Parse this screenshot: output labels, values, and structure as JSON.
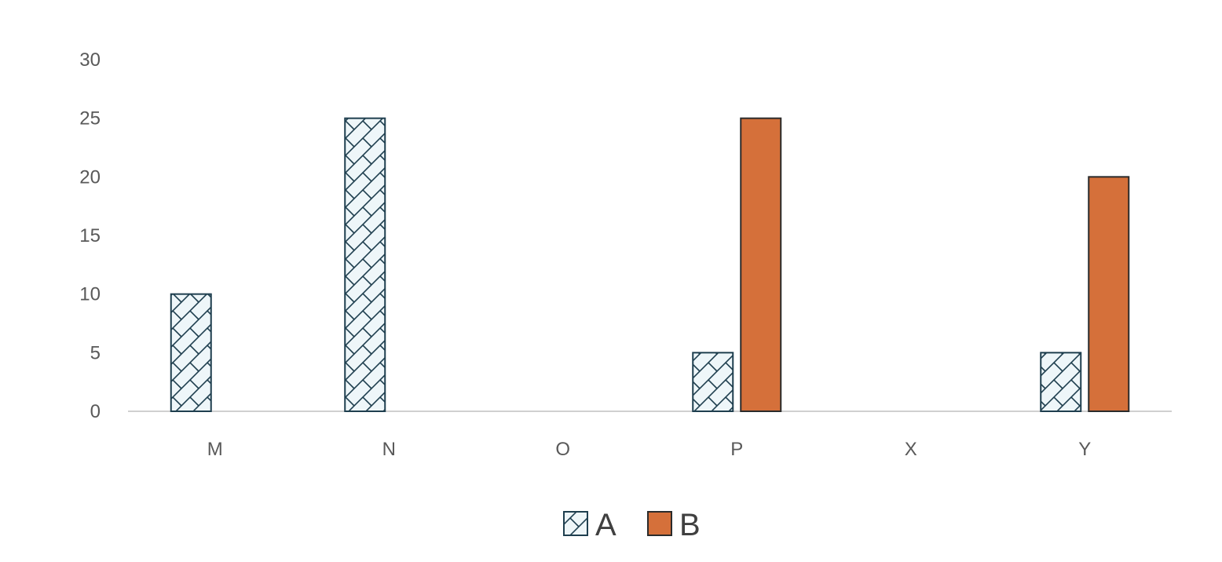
{
  "chart_data": {
    "type": "bar",
    "categories": [
      "M",
      "N",
      "O",
      "P",
      "X",
      "Y"
    ],
    "series": [
      {
        "name": "A",
        "values": [
          10,
          25,
          0,
          5,
          0,
          5
        ],
        "fill": "hatch",
        "color": "#1f3f4f",
        "background": "#eef6f9"
      },
      {
        "name": "B",
        "values": [
          0,
          0,
          0,
          25,
          0,
          20
        ],
        "fill": "solid",
        "color": "#d5703a",
        "stroke": "#2b2b2b"
      }
    ],
    "ylim": [
      0,
      30
    ],
    "yticks": [
      0,
      5,
      10,
      15,
      20,
      25,
      30
    ],
    "grid": false,
    "legend_position": "bottom-center",
    "title": "",
    "xlabel": "",
    "ylabel": ""
  }
}
